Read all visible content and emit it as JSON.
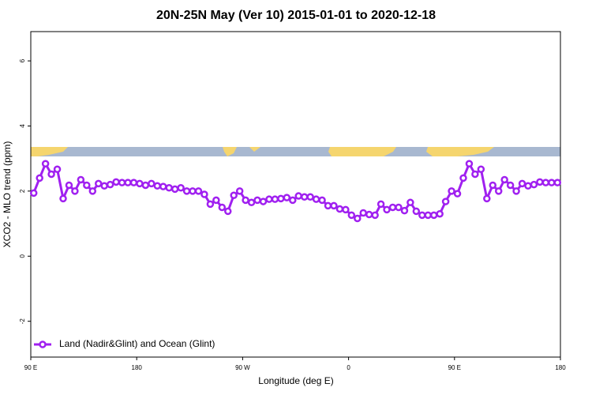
{
  "chart_data": {
    "type": "line",
    "title": "20N-25N May (Ver 10)   2015-01-01 to 2020-12-18",
    "x_label": "Longitude (deg E)",
    "y_label": "XCO2 - MLO trend (ppm)",
    "xlim": [
      90,
      540
    ],
    "ylim": [
      -3.1,
      6.9
    ],
    "xticks": [
      {
        "value": 90,
        "label": "90 E"
      },
      {
        "value": 180,
        "label": "180"
      },
      {
        "value": 270,
        "label": "90 W"
      },
      {
        "value": 360,
        "label": "0"
      },
      {
        "value": 450,
        "label": "90 E"
      },
      {
        "value": 540,
        "label": "180"
      }
    ],
    "yticks": [
      -2,
      0,
      2,
      4,
      6
    ],
    "legend_position": "lower left",
    "x": [
      92.5,
      97.5,
      102.5,
      107.5,
      112.5,
      117.5,
      122.5,
      127.5,
      132.5,
      137.5,
      142.5,
      147.5,
      152.5,
      157.5,
      162.5,
      167.5,
      172.5,
      177.5,
      182.5,
      187.5,
      192.5,
      197.5,
      202.5,
      207.5,
      212.5,
      217.5,
      222.5,
      227.5,
      232.5,
      237.5,
      242.5,
      247.5,
      252.5,
      257.5,
      262.5,
      267.5,
      272.5,
      277.5,
      282.5,
      287.5,
      292.5,
      297.5,
      302.5,
      307.5,
      312.5,
      317.5,
      322.5,
      327.5,
      332.5,
      337.5,
      342.5,
      347.5,
      352.5,
      357.5,
      362.5,
      367.5,
      372.5,
      377.5,
      382.5,
      387.5,
      392.5,
      397.5,
      402.5,
      407.5,
      412.5,
      417.5,
      422.5,
      427.5,
      432.5,
      437.5,
      442.5,
      447.5,
      452.5,
      457.5,
      462.5,
      467.5,
      472.5,
      477.5,
      482.5,
      487.5,
      492.5,
      497.5,
      502.5,
      507.5,
      512.5,
      517.5,
      522.5,
      527.5,
      532.5,
      537.5
    ],
    "series": [
      {
        "name": "Land (Nadir&Glint) and Ocean (Glint)",
        "color": "#a020f0",
        "values": [
          1.94,
          2.4,
          2.84,
          2.52,
          2.67,
          1.77,
          2.18,
          2.0,
          2.35,
          2.18,
          2.0,
          2.23,
          2.16,
          2.2,
          2.28,
          2.26,
          2.26,
          2.26,
          2.23,
          2.18,
          2.23,
          2.16,
          2.14,
          2.1,
          2.06,
          2.1,
          2.0,
          2.0,
          2.0,
          1.9,
          1.6,
          1.72,
          1.5,
          1.38,
          1.87,
          2.0,
          1.72,
          1.65,
          1.72,
          1.68,
          1.75,
          1.75,
          1.77,
          1.8,
          1.72,
          1.85,
          1.82,
          1.82,
          1.75,
          1.72,
          1.55,
          1.55,
          1.45,
          1.43,
          1.26,
          1.16,
          1.33,
          1.28,
          1.26,
          1.6,
          1.43,
          1.5,
          1.5,
          1.4,
          1.65,
          1.38,
          1.26,
          1.26,
          1.26,
          1.3,
          1.68,
          2.0,
          1.92,
          2.4,
          2.84,
          2.52,
          2.67,
          1.77,
          2.18,
          2.0,
          2.35,
          2.18,
          2.0,
          2.23,
          2.16,
          2.2,
          2.28,
          2.26,
          2.26,
          2.26
        ]
      }
    ]
  }
}
